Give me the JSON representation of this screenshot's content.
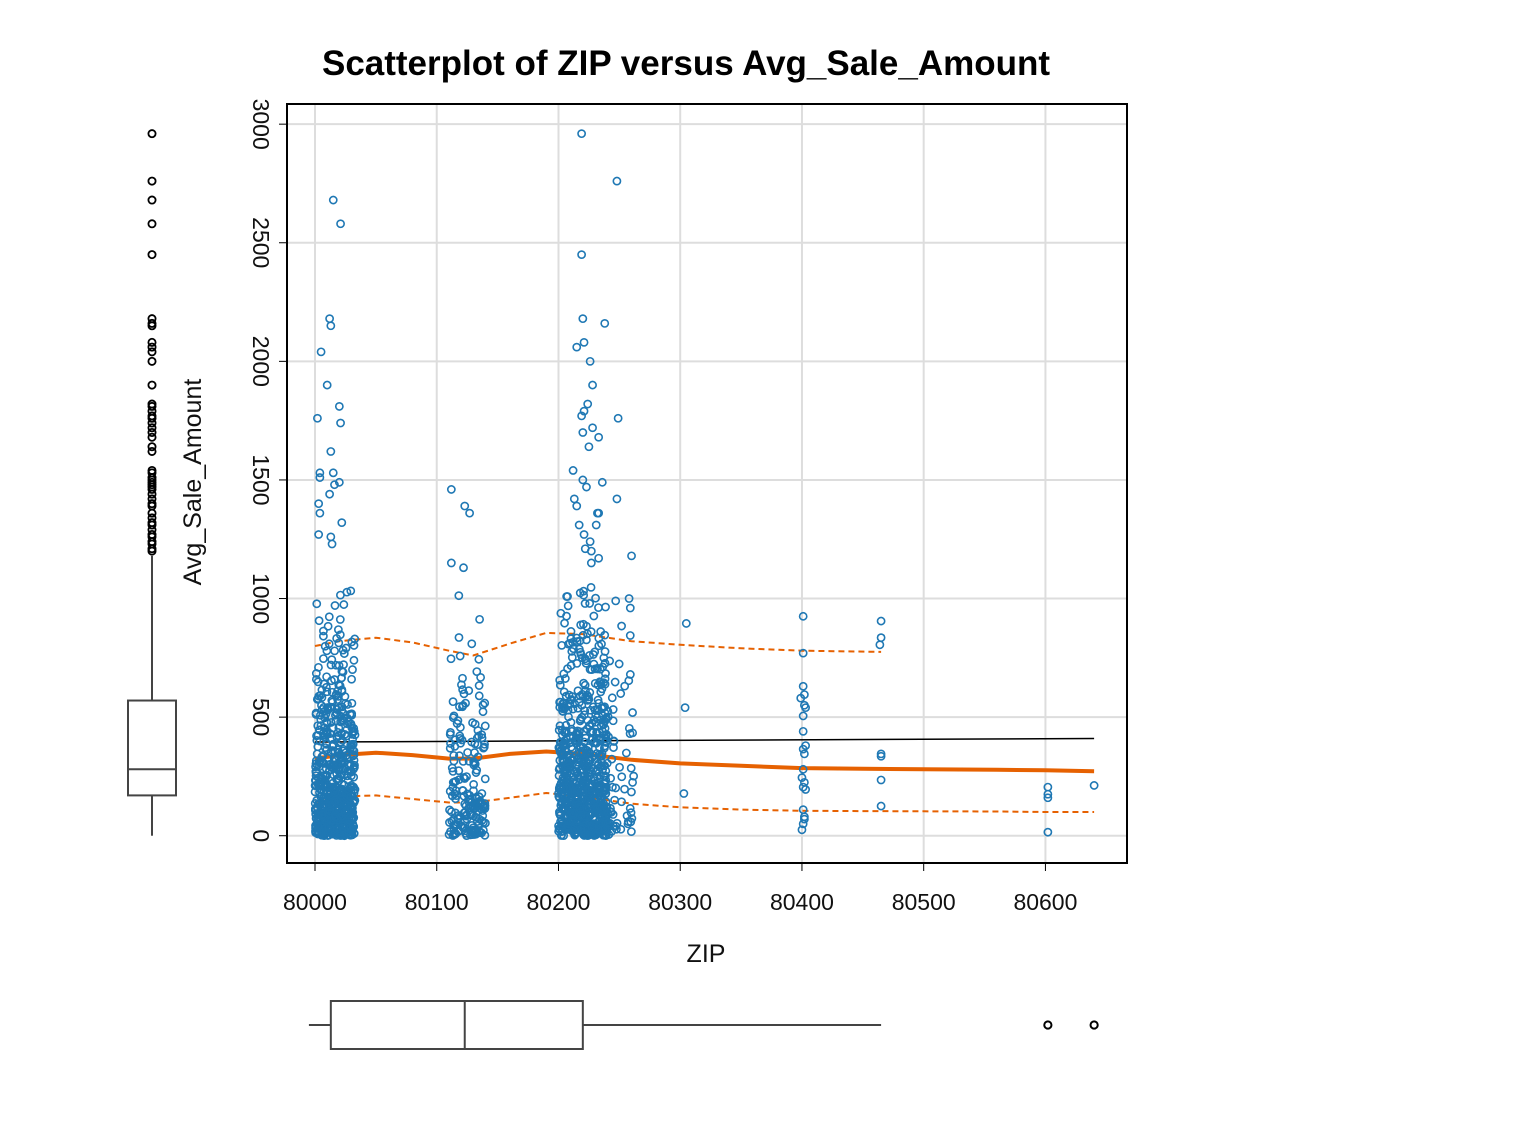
{
  "chart_data": {
    "type": "scatter",
    "title": "Scatterplot of ZIP versus Avg_Sale_Amount",
    "xlabel": "ZIP",
    "ylabel": "Avg_Sale_Amount",
    "xlim": [
      79977,
      80667
    ],
    "ylim": [
      -115,
      3085
    ],
    "x_ticks": [
      "80000",
      "80100",
      "80200",
      "80300",
      "80400",
      "80500",
      "80600"
    ],
    "y_ticks": [
      "0",
      "500",
      "1000",
      "1500",
      "2000",
      "2500",
      "3000"
    ],
    "grid": true,
    "colors": {
      "points": "#1f78b4",
      "linear_fit": "#000000",
      "smooth_fit": "#e66101",
      "spread_band": "#e66101",
      "boxplot": "#000000"
    },
    "clusters": [
      {
        "x_range": [
          80000,
          80033
        ],
        "count": 600,
        "y_range": [
          0,
          1100
        ]
      },
      {
        "x_range": [
          80110,
          80140
        ],
        "count": 190,
        "y_range": [
          0,
          1050
        ]
      },
      {
        "x_range": [
          80200,
          80240
        ],
        "count": 720,
        "y_range": [
          0,
          1100
        ]
      },
      {
        "x_range": [
          80240,
          80262
        ],
        "count": 60,
        "y_range": [
          0,
          1000
        ]
      }
    ],
    "outlier_points": [
      {
        "x": 80015,
        "y": 2680
      },
      {
        "x": 80021,
        "y": 2580
      },
      {
        "x": 80012,
        "y": 2180
      },
      {
        "x": 80013,
        "y": 2150
      },
      {
        "x": 80005,
        "y": 2040
      },
      {
        "x": 80010,
        "y": 1900
      },
      {
        "x": 80020,
        "y": 1810
      },
      {
        "x": 80002,
        "y": 1760
      },
      {
        "x": 80021,
        "y": 1740
      },
      {
        "x": 80013,
        "y": 1620
      },
      {
        "x": 80004,
        "y": 1530
      },
      {
        "x": 80015,
        "y": 1530
      },
      {
        "x": 80004,
        "y": 1510
      },
      {
        "x": 80020,
        "y": 1490
      },
      {
        "x": 80016,
        "y": 1480
      },
      {
        "x": 80012,
        "y": 1440
      },
      {
        "x": 80003,
        "y": 1400
      },
      {
        "x": 80004,
        "y": 1360
      },
      {
        "x": 80022,
        "y": 1320
      },
      {
        "x": 80003,
        "y": 1270
      },
      {
        "x": 80013,
        "y": 1260
      },
      {
        "x": 80014,
        "y": 1230
      },
      {
        "x": 80112,
        "y": 1460
      },
      {
        "x": 80123,
        "y": 1390
      },
      {
        "x": 80127,
        "y": 1360
      },
      {
        "x": 80112,
        "y": 1150
      },
      {
        "x": 80122,
        "y": 1130
      },
      {
        "x": 80219,
        "y": 2960
      },
      {
        "x": 80248,
        "y": 2760
      },
      {
        "x": 80219,
        "y": 2450
      },
      {
        "x": 80220,
        "y": 2180
      },
      {
        "x": 80238,
        "y": 2160
      },
      {
        "x": 80221,
        "y": 2080
      },
      {
        "x": 80215,
        "y": 2060
      },
      {
        "x": 80226,
        "y": 2000
      },
      {
        "x": 80228,
        "y": 1900
      },
      {
        "x": 80224,
        "y": 1820
      },
      {
        "x": 80221,
        "y": 1790
      },
      {
        "x": 80219,
        "y": 1770
      },
      {
        "x": 80249,
        "y": 1760
      },
      {
        "x": 80228,
        "y": 1720
      },
      {
        "x": 80220,
        "y": 1700
      },
      {
        "x": 80233,
        "y": 1680
      },
      {
        "x": 80225,
        "y": 1640
      },
      {
        "x": 80212,
        "y": 1540
      },
      {
        "x": 80220,
        "y": 1500
      },
      {
        "x": 80236,
        "y": 1490
      },
      {
        "x": 80223,
        "y": 1470
      },
      {
        "x": 80248,
        "y": 1420
      },
      {
        "x": 80213,
        "y": 1420
      },
      {
        "x": 80215,
        "y": 1390
      },
      {
        "x": 80232,
        "y": 1360
      },
      {
        "x": 80233,
        "y": 1360
      },
      {
        "x": 80231,
        "y": 1310
      },
      {
        "x": 80217,
        "y": 1310
      },
      {
        "x": 80221,
        "y": 1270
      },
      {
        "x": 80226,
        "y": 1240
      },
      {
        "x": 80222,
        "y": 1210
      },
      {
        "x": 80227,
        "y": 1200
      },
      {
        "x": 80260,
        "y": 1180
      },
      {
        "x": 80233,
        "y": 1170
      },
      {
        "x": 80227,
        "y": 1150
      },
      {
        "x": 80258,
        "y": 1000
      },
      {
        "x": 80259,
        "y": 960
      },
      {
        "x": 80247,
        "y": 990
      },
      {
        "x": 80305,
        "y": 895
      },
      {
        "x": 80304,
        "y": 540
      },
      {
        "x": 80303,
        "y": 178
      },
      {
        "x": 80401,
        "y": 925
      },
      {
        "x": 80401,
        "y": 770
      },
      {
        "x": 80401,
        "y": 630
      },
      {
        "x": 80402,
        "y": 595
      },
      {
        "x": 80399,
        "y": 580
      },
      {
        "x": 80402,
        "y": 550
      },
      {
        "x": 80403,
        "y": 540
      },
      {
        "x": 80401,
        "y": 505
      },
      {
        "x": 80401,
        "y": 440
      },
      {
        "x": 80403,
        "y": 380
      },
      {
        "x": 80401,
        "y": 365
      },
      {
        "x": 80402,
        "y": 345
      },
      {
        "x": 80401,
        "y": 280
      },
      {
        "x": 80400,
        "y": 245
      },
      {
        "x": 80402,
        "y": 225
      },
      {
        "x": 80401,
        "y": 205
      },
      {
        "x": 80403,
        "y": 195
      },
      {
        "x": 80401,
        "y": 110
      },
      {
        "x": 80402,
        "y": 80
      },
      {
        "x": 80402,
        "y": 70
      },
      {
        "x": 80401,
        "y": 50
      },
      {
        "x": 80400,
        "y": 25
      },
      {
        "x": 80465,
        "y": 905
      },
      {
        "x": 80465,
        "y": 835
      },
      {
        "x": 80464,
        "y": 805
      },
      {
        "x": 80465,
        "y": 345
      },
      {
        "x": 80465,
        "y": 335
      },
      {
        "x": 80465,
        "y": 235
      },
      {
        "x": 80465,
        "y": 125
      },
      {
        "x": 80602,
        "y": 205
      },
      {
        "x": 80602,
        "y": 175
      },
      {
        "x": 80602,
        "y": 160
      },
      {
        "x": 80602,
        "y": 15
      },
      {
        "x": 80640,
        "y": 212
      }
    ],
    "linear_fit": {
      "x": [
        80000,
        80640
      ],
      "y": [
        395,
        410
      ]
    },
    "smooth_fit": {
      "x": [
        80000,
        80020,
        80050,
        80080,
        80110,
        80130,
        80160,
        80190,
        80220,
        80260,
        80300,
        80350,
        80400,
        80450,
        80500,
        80560,
        80600,
        80640
      ],
      "y": [
        325,
        340,
        350,
        340,
        325,
        325,
        345,
        355,
        345,
        320,
        305,
        295,
        285,
        282,
        280,
        278,
        276,
        272
      ]
    },
    "upper_band": {
      "x": [
        80000,
        80020,
        80050,
        80080,
        80110,
        80130,
        80160,
        80190,
        80220,
        80260,
        80300,
        80350,
        80400,
        80465
      ],
      "y": [
        800,
        820,
        835,
        815,
        780,
        760,
        810,
        855,
        850,
        820,
        805,
        790,
        780,
        775
      ]
    },
    "lower_band": {
      "x": [
        80000,
        80020,
        80050,
        80080,
        80110,
        80130,
        80160,
        80190,
        80220,
        80260,
        80300,
        80350,
        80400,
        80450,
        80500,
        80560,
        80600,
        80640
      ],
      "y": [
        140,
        165,
        170,
        155,
        140,
        140,
        160,
        180,
        165,
        135,
        120,
        110,
        105,
        104,
        103,
        102,
        100,
        100
      ]
    },
    "y_boxplot": {
      "min": 0,
      "q1": 170,
      "median": 280,
      "q3": 570,
      "whisker_max": 1180,
      "outliers": [
        2960,
        2760,
        2680,
        2580,
        2450,
        2180,
        2160,
        2150,
        2080,
        2060,
        2040,
        2000,
        1900,
        1820,
        1810,
        1790,
        1770,
        1760,
        1740,
        1720,
        1700,
        1680,
        1640,
        1620,
        1540,
        1530,
        1510,
        1500,
        1490,
        1480,
        1470,
        1460,
        1440,
        1420,
        1400,
        1390,
        1360,
        1340,
        1320,
        1310,
        1290,
        1270,
        1260,
        1240,
        1230,
        1210,
        1200
      ]
    },
    "x_boxplot": {
      "whisker_min": 79995,
      "q1": 80013,
      "median": 80123,
      "q3": 80220,
      "whisker_max": 80465,
      "outliers": [
        80602,
        80640
      ]
    }
  }
}
